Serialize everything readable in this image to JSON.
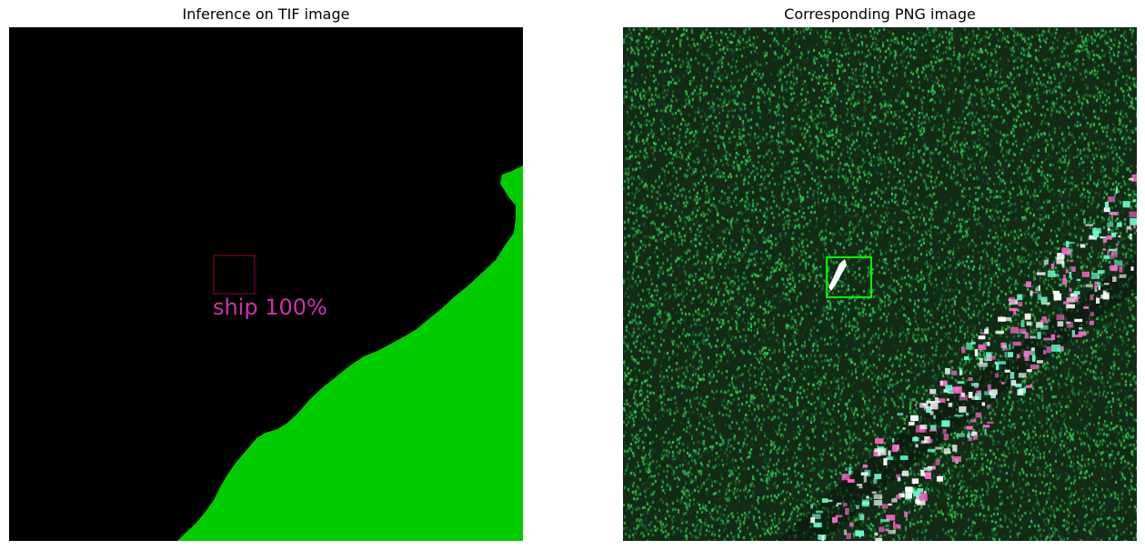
{
  "figure": {
    "left_title": "Inference on TIF image",
    "right_title": "Corresponding PNG image"
  },
  "left_panel": {
    "background_color": "#000000",
    "land_color": "#00cc00",
    "detection": {
      "label": "ship 100%",
      "box_color": "#660033",
      "label_color": "#cc33aa"
    }
  },
  "right_panel": {
    "sea_color": "#122a16",
    "speckle_color": "#2ecc52",
    "urban_colors": [
      "#ffffff",
      "#ff66cc",
      "#66ffcc"
    ],
    "detection": {
      "box_color": "#00ff00"
    }
  }
}
